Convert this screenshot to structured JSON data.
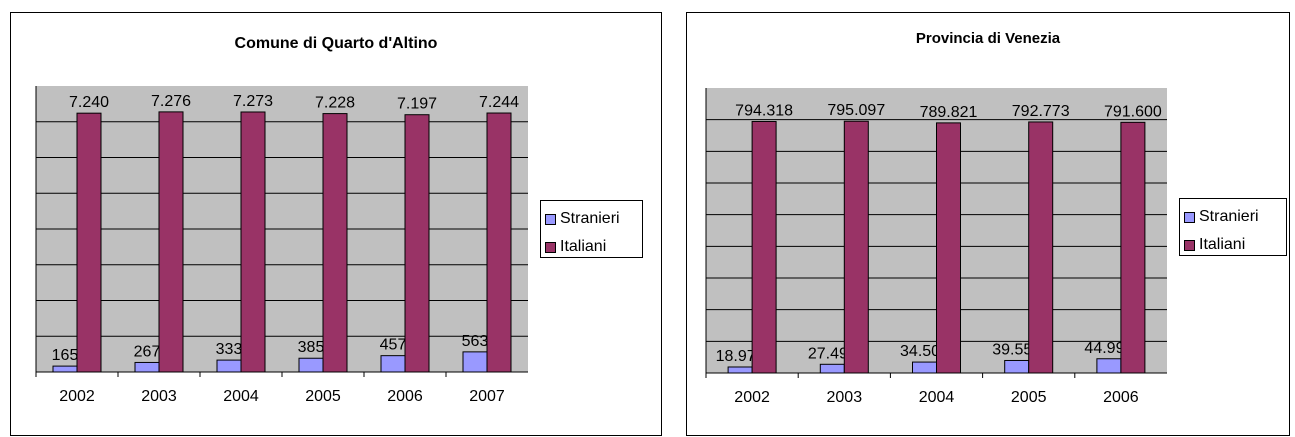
{
  "colors": {
    "plot_bg": "#c0c0c0",
    "stranieri": "#9999ff",
    "italiani": "#993366",
    "grid": "#000000"
  },
  "chart_data": [
    {
      "type": "bar",
      "title": "Comune di Quarto d'Altino",
      "categories": [
        "2002",
        "2003",
        "2004",
        "2005",
        "2006",
        "2007"
      ],
      "series": [
        {
          "name": "Stranieri",
          "values": [
            165,
            267,
            333,
            385,
            457,
            563
          ],
          "labels": [
            "165",
            "267",
            "333",
            "385",
            "457",
            "563"
          ]
        },
        {
          "name": "Italiani",
          "values": [
            7240,
            7276,
            7273,
            7228,
            7197,
            7244
          ],
          "labels": [
            "7.240",
            "7.276",
            "7.273",
            "7.228",
            "7.197",
            "7.244"
          ]
        }
      ],
      "ylim": [
        0,
        8000
      ],
      "grid": true,
      "legend": "right"
    },
    {
      "type": "bar",
      "title": "Provincia di Venezia",
      "categories": [
        "2002",
        "2003",
        "2004",
        "2005",
        "2006"
      ],
      "series": [
        {
          "name": "Stranieri",
          "values": [
            18976,
            27494,
            34506,
            39553,
            44996
          ],
          "labels": [
            "18.976",
            "27.494",
            "34.506",
            "39.553",
            "44.996"
          ]
        },
        {
          "name": "Italiani",
          "values": [
            794318,
            795097,
            789821,
            792773,
            791600
          ],
          "labels": [
            "794.318",
            "795.097",
            "789.821",
            "792.773",
            "791.600"
          ]
        }
      ],
      "ylim": [
        0,
        900000
      ],
      "grid": true,
      "legend": "right"
    }
  ]
}
